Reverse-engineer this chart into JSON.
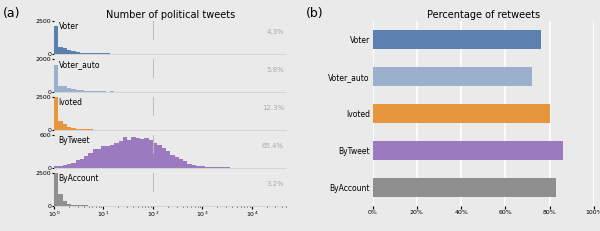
{
  "title_left": "Number of political tweets",
  "title_right": "Percentage of retweets",
  "label_a": "(a)",
  "label_b": "(b)",
  "categories": [
    "Voter",
    "Voter_auto",
    "Ivoted",
    "ByTweet",
    "ByAccount"
  ],
  "colors": [
    "#5b80b0",
    "#9ab0cc",
    "#e8963c",
    "#9b7abf",
    "#8f8f8f"
  ],
  "pct_labels": [
    "4.3%",
    "5.8%",
    "12.3%",
    "65.4%",
    "3.2%"
  ],
  "retweet_values": [
    76,
    72,
    80,
    86,
    83
  ],
  "hist_ymaxes": [
    2500,
    2000,
    2500,
    600,
    2500
  ],
  "background": "#eaeaea"
}
